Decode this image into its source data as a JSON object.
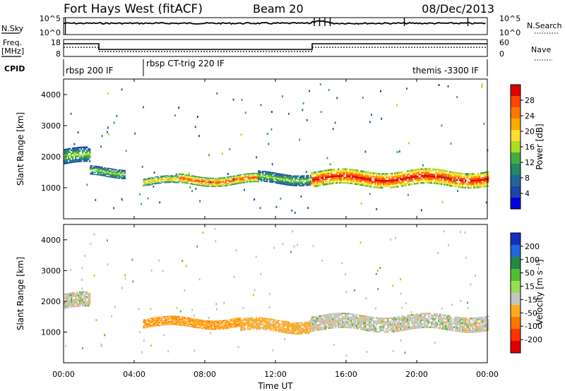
{
  "header": {
    "station": "Fort Hays West (fitACF)",
    "beam": "Beam 20",
    "date": "08/Dec/2013"
  },
  "strip_noise": {
    "left_label": "N.Sky",
    "right_label": "N.Search",
    "left_ticks": [
      "10^5",
      "10^0"
    ],
    "right_ticks": [
      "10^5",
      "10^0"
    ]
  },
  "strip_freq": {
    "left_label_top": "Freq.",
    "left_label_bottom": "[MHz]",
    "left_ticks": [
      "18",
      "8"
    ],
    "right_label": "Nave",
    "right_ticks": [
      "60",
      "0"
    ]
  },
  "cpid": {
    "label": "CPID",
    "segments": [
      {
        "label": "rbsp 200 IF",
        "start_h": 0.0,
        "end_h": 4.5
      },
      {
        "label": "rbsp CT-trig 220 IF",
        "start_h": 4.5,
        "end_h": 24.0
      },
      {
        "label": "themis -3300 IF",
        "start_h": 19.5,
        "end_h": 24.0
      }
    ]
  },
  "axes": {
    "xlabel": "Time UT",
    "ylabel": "Slant Range [km]",
    "xticks": [
      "00:00",
      "04:00",
      "08:00",
      "12:00",
      "16:00",
      "20:00",
      "00:00"
    ],
    "yticks": [
      "1000",
      "2000",
      "3000",
      "4000"
    ]
  },
  "colorbars": {
    "power": {
      "label": "Power [dB]",
      "ticks": [
        "28",
        "24",
        "20",
        "16",
        "12",
        "8",
        "4"
      ],
      "colors": [
        "#e00000",
        "#ff4400",
        "#ff7700",
        "#ffaa00",
        "#ffdd33",
        "#aadd22",
        "#44aa44",
        "#228866",
        "#226699",
        "#2244aa",
        "#0000dd"
      ]
    },
    "velocity": {
      "label": "Velocity [m s⁻¹]",
      "ticks": [
        "200",
        "100",
        "50",
        "15",
        "-15",
        "-50",
        "-100",
        "-200"
      ],
      "colors": [
        "#1030c0",
        "#2266dd",
        "#228844",
        "#55bb33",
        "#99dd55",
        "#c4c4c0",
        "#ffaa22",
        "#ff7700",
        "#ff3300",
        "#dd0000"
      ]
    }
  },
  "chart_data": [
    {
      "type": "heatmap",
      "title": "Power",
      "x_range": [
        0,
        24
      ],
      "ylim": [
        0,
        4500
      ],
      "echo_bands": [
        {
          "t_start": 0.0,
          "t_end": 1.5,
          "r_center": 2000,
          "r_width": 500,
          "level": "medium"
        },
        {
          "t_start": 1.5,
          "t_end": 3.5,
          "r_center": 1500,
          "r_width": 300,
          "level": "medium"
        },
        {
          "t_start": 4.5,
          "t_end": 6.5,
          "r_center": 1200,
          "r_width": 250,
          "level": "medium-high"
        },
        {
          "t_start": 6.5,
          "t_end": 11.0,
          "r_center": 1250,
          "r_width": 300,
          "level": "high"
        },
        {
          "t_start": 11.0,
          "t_end": 14.0,
          "r_center": 1300,
          "r_width": 350,
          "level": "medium"
        },
        {
          "t_start": 14.0,
          "t_end": 24.0,
          "r_center": 1300,
          "r_width": 500,
          "level": "very-high"
        }
      ]
    },
    {
      "type": "heatmap",
      "title": "Velocity",
      "x_range": [
        0,
        24
      ],
      "ylim": [
        0,
        4500
      ],
      "echo_bands": [
        {
          "t_start": 0.0,
          "t_end": 1.5,
          "r_center": 2000,
          "r_width": 500,
          "value": 0
        },
        {
          "t_start": 4.5,
          "t_end": 10.0,
          "r_center": 1300,
          "r_width": 300,
          "value": -40
        },
        {
          "t_start": 10.0,
          "t_end": 14.0,
          "r_center": 1200,
          "r_width": 400,
          "value": -30
        },
        {
          "t_start": 14.0,
          "t_end": 24.0,
          "r_center": 1300,
          "r_width": 500,
          "value": 0
        }
      ]
    }
  ]
}
